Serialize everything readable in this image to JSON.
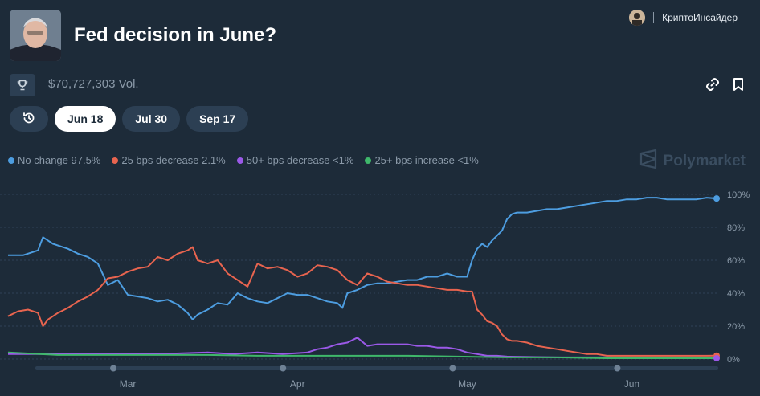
{
  "header": {
    "title": "Fed decision in June?",
    "channel": "КриптоИнсайдер",
    "volume": "$70,727,303 Vol."
  },
  "icons": {
    "trophy": "trophy-icon",
    "link": "link-icon",
    "bookmark": "bookmark-icon",
    "history": "history-icon",
    "brand": "polymarket-logo-icon"
  },
  "tabs": [
    "Jun 18",
    "Jul 30",
    "Sep 17"
  ],
  "brand": "Polymarket",
  "legend": [
    {
      "label": "No change 97.5%",
      "color": "#4d9de0"
    },
    {
      "label": "25 bps decrease 2.1%",
      "color": "#e8644f"
    },
    {
      "label": "50+ bps decrease <1%",
      "color": "#9b59e8"
    },
    {
      "label": "25+ bps increase <1%",
      "color": "#3fb86b"
    }
  ],
  "chart_data": {
    "type": "line",
    "ylim": [
      0,
      100
    ],
    "xlim": [
      0,
      142
    ],
    "x_unit": "days from left edge of chart",
    "yticks": [
      "100%",
      "80%",
      "60%",
      "40%",
      "20%",
      "0%"
    ],
    "ytick_values": [
      100,
      80,
      60,
      40,
      20,
      0
    ],
    "xticks": [
      "Mar",
      "Apr",
      "May",
      "Jun"
    ],
    "xtick_positions": [
      24,
      58,
      92,
      125
    ],
    "grid": true,
    "series": [
      {
        "name": "No change",
        "color": "#4d9de0",
        "x": [
          0,
          3,
          6,
          7,
          8,
          9,
          10,
          12,
          14,
          16,
          18,
          20,
          22,
          24,
          26,
          28,
          30,
          32,
          34,
          36,
          37,
          38,
          40,
          42,
          44,
          46,
          48,
          50,
          52,
          54,
          56,
          58,
          60,
          62,
          64,
          66,
          67,
          68,
          70,
          72,
          74,
          76,
          78,
          80,
          82,
          84,
          86,
          88,
          90,
          92,
          93,
          94,
          95,
          96,
          97,
          98,
          99,
          100,
          101,
          102,
          104,
          106,
          108,
          110,
          112,
          114,
          116,
          118,
          120,
          122,
          124,
          126,
          128,
          130,
          132,
          134,
          136,
          138,
          140,
          142
        ],
        "y": [
          63,
          63,
          66,
          74,
          72,
          70,
          69,
          67,
          64,
          62,
          58,
          45,
          48,
          39,
          38,
          37,
          35,
          36,
          33,
          28,
          24,
          27,
          30,
          34,
          33,
          40,
          37,
          35,
          34,
          37,
          40,
          39,
          39,
          37,
          35,
          34,
          31,
          40,
          42,
          45,
          46,
          46,
          47,
          48,
          48,
          50,
          50,
          52,
          50,
          50,
          60,
          67,
          70,
          68,
          72,
          75,
          78,
          85,
          88,
          89,
          89,
          90,
          91,
          91,
          92,
          93,
          94,
          95,
          96,
          96,
          97,
          97,
          98,
          98,
          97,
          97,
          97,
          97,
          98,
          97.5
        ]
      },
      {
        "name": "25 bps decrease",
        "color": "#e8644f",
        "x": [
          0,
          2,
          4,
          6,
          7,
          8,
          10,
          12,
          14,
          16,
          18,
          20,
          22,
          24,
          26,
          28,
          30,
          32,
          34,
          36,
          37,
          38,
          40,
          42,
          44,
          46,
          48,
          50,
          52,
          54,
          56,
          58,
          60,
          62,
          64,
          66,
          68,
          70,
          72,
          74,
          76,
          78,
          80,
          82,
          84,
          86,
          88,
          90,
          92,
          93,
          94,
          95,
          96,
          97,
          98,
          99,
          100,
          101,
          102,
          104,
          106,
          108,
          110,
          112,
          114,
          116,
          118,
          120,
          122,
          124,
          126,
          128,
          130,
          132,
          134,
          136,
          138,
          140,
          142
        ],
        "y": [
          26,
          29,
          30,
          28,
          20,
          24,
          28,
          31,
          35,
          38,
          42,
          49,
          50,
          53,
          55,
          56,
          62,
          60,
          64,
          66,
          68,
          60,
          58,
          60,
          52,
          48,
          44,
          58,
          55,
          56,
          54,
          50,
          52,
          57,
          56,
          54,
          48,
          45,
          52,
          50,
          47,
          46,
          45,
          45,
          44,
          43,
          42,
          42,
          41,
          41,
          30,
          27,
          23,
          22,
          20,
          15,
          12,
          11,
          11,
          10,
          8,
          7,
          6,
          5,
          4,
          3,
          3,
          2,
          2,
          2,
          2,
          2,
          2,
          2,
          2,
          2,
          2,
          2,
          2.1
        ]
      },
      {
        "name": "50+ bps decrease",
        "color": "#9b59e8",
        "x": [
          0,
          10,
          20,
          30,
          35,
          40,
          45,
          50,
          55,
          60,
          62,
          64,
          66,
          68,
          70,
          72,
          74,
          76,
          78,
          80,
          82,
          84,
          86,
          88,
          90,
          92,
          94,
          96,
          98,
          100,
          110,
          120,
          130,
          142
        ],
        "y": [
          3,
          3,
          3,
          3,
          3.5,
          4,
          3,
          4,
          3,
          4,
          6,
          7,
          9,
          10,
          13,
          8,
          9,
          9,
          9,
          9,
          8,
          8,
          7,
          7,
          6,
          4,
          3,
          2,
          2,
          1.5,
          1,
          1,
          0.5,
          0.5
        ]
      },
      {
        "name": "25+ bps increase",
        "color": "#3fb86b",
        "x": [
          0,
          10,
          20,
          30,
          40,
          50,
          60,
          70,
          80,
          90,
          100,
          110,
          120,
          130,
          142
        ],
        "y": [
          4,
          2.5,
          2.5,
          2.5,
          2.5,
          2,
          2,
          2,
          2,
          1.5,
          1,
          1,
          0.5,
          0.5,
          0.5
        ]
      }
    ],
    "end_markers": [
      97.5,
      2.1,
      0.5
    ]
  }
}
